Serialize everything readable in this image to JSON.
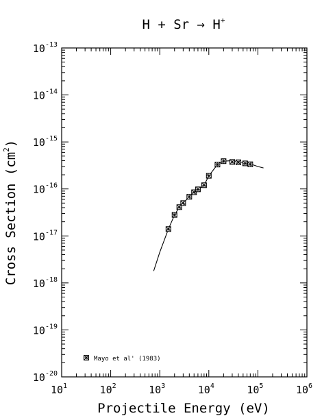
{
  "chart_data": {
    "type": "scatter",
    "title_main": "H + Sr → H",
    "title_sup": "+",
    "xlabel": "Projectile Energy (eV)",
    "ylabel_main": "Cross Section (cm",
    "ylabel_sup": "2",
    "ylabel_close": ")",
    "x_scale": "log",
    "y_scale": "log",
    "xlim": [
      10,
      1000000
    ],
    "ylim": [
      1e-20,
      1e-13
    ],
    "x_ticks": [
      {
        "base": "10",
        "exp": "1",
        "value": 10
      },
      {
        "base": "10",
        "exp": "2",
        "value": 100
      },
      {
        "base": "10",
        "exp": "3",
        "value": 1000
      },
      {
        "base": "10",
        "exp": "4",
        "value": 10000
      },
      {
        "base": "10",
        "exp": "5",
        "value": 100000
      },
      {
        "base": "10",
        "exp": "6",
        "value": 1000000
      }
    ],
    "y_ticks": [
      {
        "base": "10",
        "exp": "-13",
        "value": 1e-13
      },
      {
        "base": "10",
        "exp": "-14",
        "value": 1e-14
      },
      {
        "base": "10",
        "exp": "-15",
        "value": 1e-15
      },
      {
        "base": "10",
        "exp": "-16",
        "value": 1e-16
      },
      {
        "base": "10",
        "exp": "-17",
        "value": 1e-17
      },
      {
        "base": "10",
        "exp": "-18",
        "value": 1e-18
      },
      {
        "base": "10",
        "exp": "-19",
        "value": 1e-19
      },
      {
        "base": "10",
        "exp": "-20",
        "value": 1e-20
      }
    ],
    "legend_placement": "bottom-left",
    "series": [
      {
        "name": "Mayo et al' (1983)",
        "marker": "boxed-x",
        "x": [
          1500,
          2000,
          2500,
          3000,
          4000,
          5000,
          6000,
          8000,
          10000,
          15000,
          20000,
          30000,
          40000,
          55000,
          70000
        ],
        "y": [
          1.4e-17,
          2.8e-17,
          4.1e-17,
          5e-17,
          6.8e-17,
          8.5e-17,
          9.8e-17,
          1.2e-16,
          1.9e-16,
          3.3e-16,
          3.9e-16,
          3.75e-16,
          3.7e-16,
          3.5e-16,
          3.35e-16
        ]
      }
    ],
    "fit_curve": {
      "x": [
        750,
        1000,
        1500,
        2000,
        2500,
        3000,
        4000,
        5000,
        6000,
        8000,
        10000,
        15000,
        20000,
        30000,
        40000,
        60000,
        80000,
        100000,
        130000
      ],
      "y": [
        1.8e-18,
        4.5e-18,
        1.4e-17,
        2.8e-17,
        4.1e-17,
        5e-17,
        6.8e-17,
        8.5e-17,
        9.8e-17,
        1.2e-16,
        1.9e-16,
        3.3e-16,
        3.9e-16,
        4e-16,
        3.8e-16,
        3.5e-16,
        3.25e-16,
        3e-16,
        2.8e-16
      ]
    }
  }
}
